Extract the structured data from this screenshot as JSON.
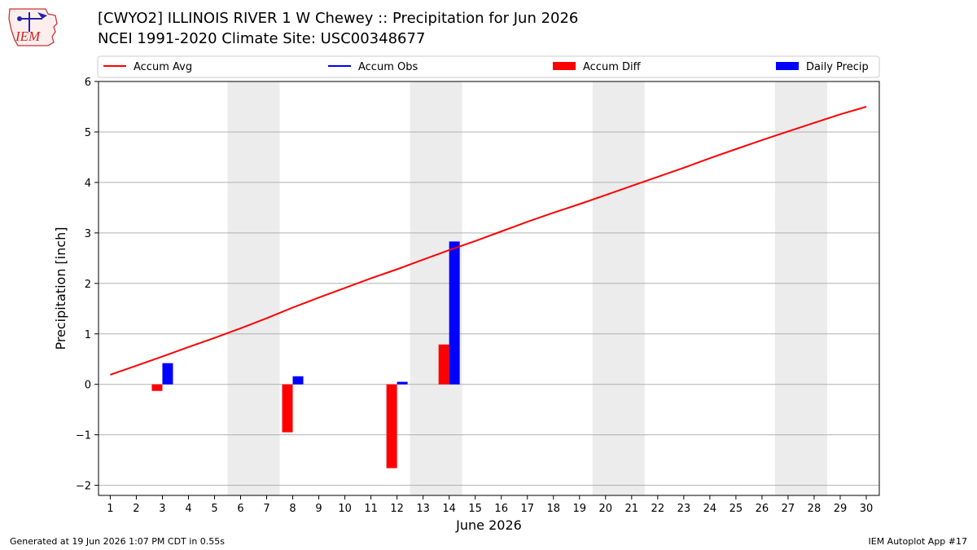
{
  "header": {
    "title_line1": "[CWYO2] ILLINOIS RIVER 1 W Chewey :: Precipitation for Jun 2026",
    "title_line2": "NCEI 1991-2020 Climate Site: USC00348677",
    "logo_text": "IEM"
  },
  "footer": {
    "generated": "Generated at 19 Jun 2026 1:07 PM CDT in 0.55s",
    "app": "IEM Autoplot App #17"
  },
  "chart_data": {
    "type": "bar",
    "xlabel": "June 2026",
    "ylabel": "Precipitation [inch]",
    "ylim": [
      -2.2,
      6
    ],
    "yticks": [
      -2,
      -1,
      0,
      1,
      2,
      3,
      4,
      5,
      6
    ],
    "ytick_labels": [
      "−2",
      "−1",
      "0",
      "1",
      "2",
      "3",
      "4",
      "5",
      "6"
    ],
    "xlim": [
      0.55,
      30.5
    ],
    "days": [
      1,
      2,
      3,
      4,
      5,
      6,
      7,
      8,
      9,
      10,
      11,
      12,
      13,
      14,
      15,
      16,
      17,
      18,
      19,
      20,
      21,
      22,
      23,
      24,
      25,
      26,
      27,
      28,
      29,
      30
    ],
    "grid": "horizontal",
    "legend_placement": "top",
    "weekend_shading": [
      [
        5.5,
        7.5
      ],
      [
        12.5,
        14.5
      ],
      [
        19.5,
        21.5
      ],
      [
        26.5,
        28.5
      ]
    ],
    "legend": [
      {
        "label": "Accum Avg",
        "kind": "line",
        "color": "#ff0000"
      },
      {
        "label": "Accum Obs",
        "kind": "line",
        "color": "#0000ff"
      },
      {
        "label": "Accum Diff",
        "kind": "bar",
        "color": "#ff0000"
      },
      {
        "label": "Daily Precip",
        "kind": "bar",
        "color": "#0000ff"
      }
    ],
    "series": [
      {
        "name": "Accum Avg",
        "kind": "line",
        "color": "#ff0000",
        "x": [
          1,
          2,
          3,
          4,
          5,
          6,
          7,
          8,
          9,
          10,
          11,
          12,
          13,
          14,
          15,
          16,
          17,
          18,
          19,
          20,
          21,
          22,
          23,
          24,
          25,
          26,
          27,
          28,
          29,
          30
        ],
        "values": [
          0.19,
          0.37,
          0.55,
          0.74,
          0.92,
          1.11,
          1.31,
          1.52,
          1.72,
          1.91,
          2.1,
          2.28,
          2.47,
          2.66,
          2.84,
          3.03,
          3.22,
          3.4,
          3.57,
          3.75,
          3.93,
          4.11,
          4.29,
          4.48,
          4.66,
          4.84,
          5.01,
          5.18,
          5.35,
          5.5
        ]
      },
      {
        "name": "Accum Diff",
        "kind": "bar",
        "color": "#ff0000",
        "x": [
          3,
          8,
          12,
          14
        ],
        "values": [
          -0.13,
          -0.95,
          -1.66,
          0.79
        ]
      },
      {
        "name": "Daily Precip",
        "kind": "bar",
        "color": "#0000ff",
        "x": [
          3,
          8,
          12,
          14
        ],
        "values": [
          0.42,
          0.16,
          0.05,
          2.83
        ]
      }
    ]
  }
}
